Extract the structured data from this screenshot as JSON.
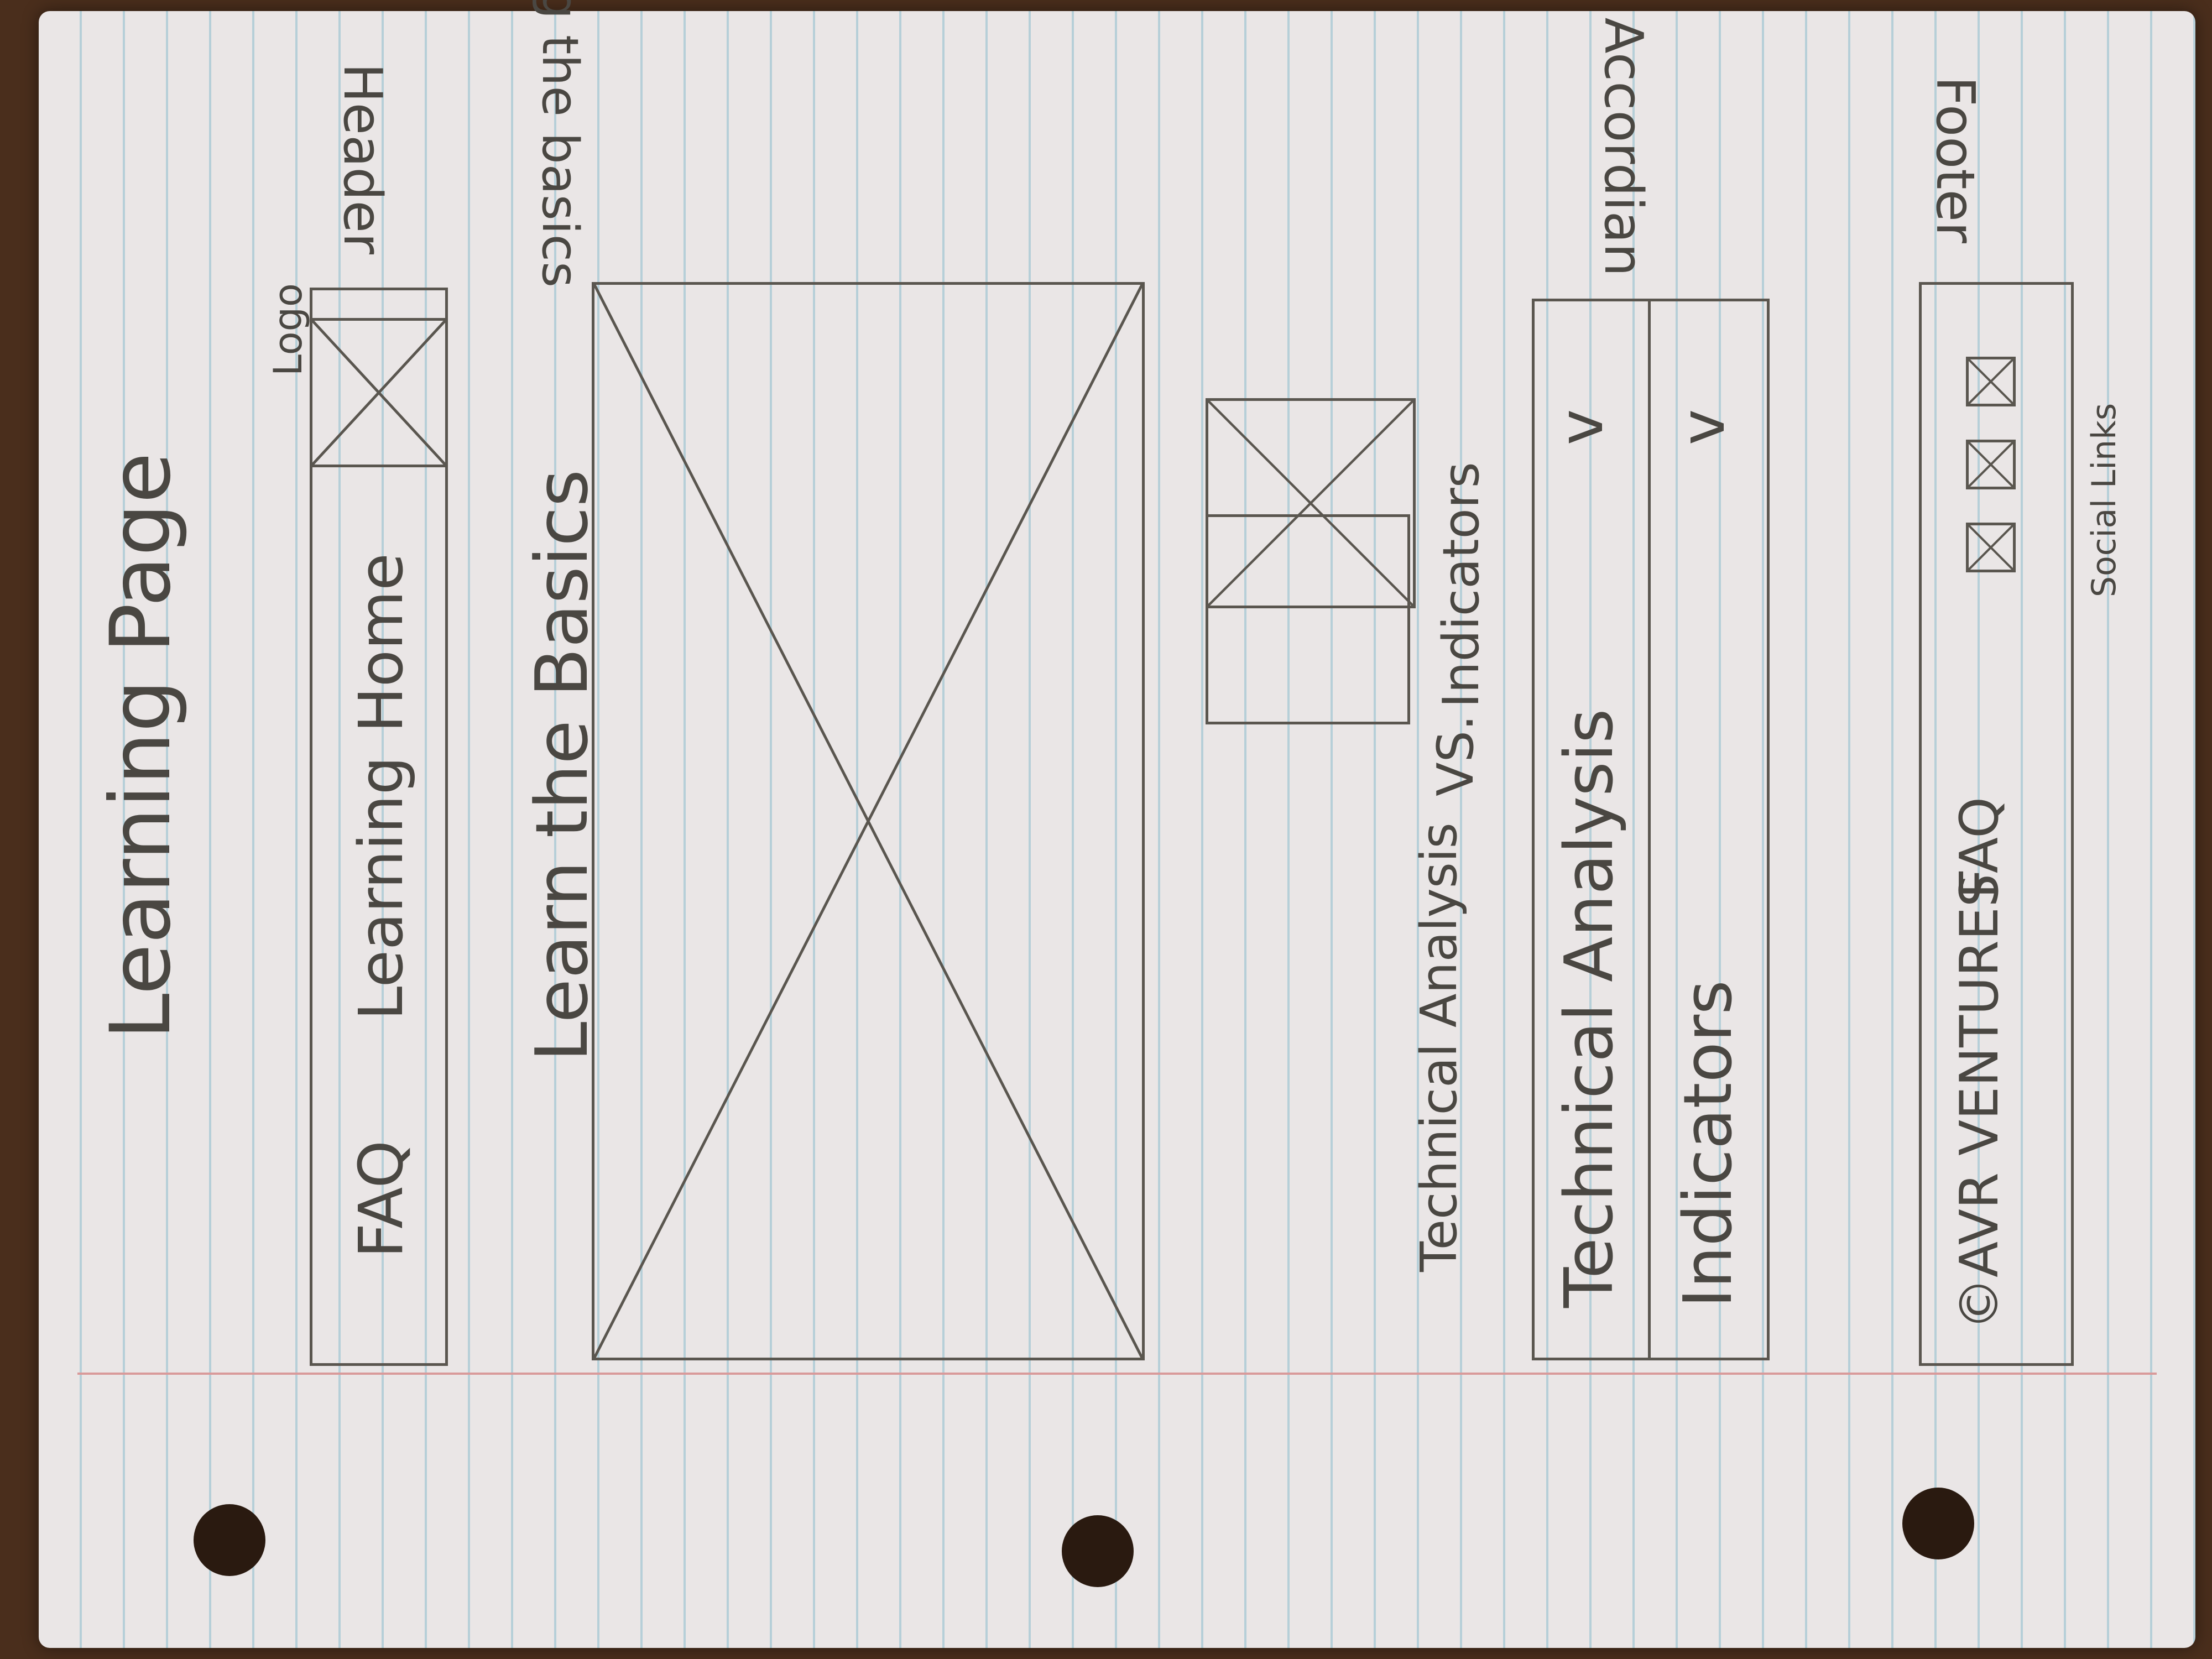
{
  "page_title": "Learning Page",
  "header": {
    "logo_label": "Logo",
    "nav": [
      "Home",
      "Learning",
      "FAQ"
    ],
    "side_label": "Header"
  },
  "hero": {
    "heading": "Learn the Basics",
    "video_note": "Video of me explaining the basics"
  },
  "comparison": {
    "left_label": "Technical Analysis",
    "vs_label": "VS.",
    "right_label": "Indicators"
  },
  "accordion": {
    "side_label": "Accordian",
    "items": [
      {
        "label": "Technical Analysis",
        "chevron": "v"
      },
      {
        "label": "Indicators",
        "chevron": "v"
      }
    ]
  },
  "footer": {
    "copyright": "©AVR VENTURES",
    "faq": "FAQ",
    "social_label": "Social Links",
    "side_label": "Footer"
  },
  "colors": {
    "paper": "#eae6e6",
    "rule_line": "#b6cfd8",
    "margin_line": "#d99a9a",
    "ink": "#4a4742",
    "background": "#4a2e1c"
  }
}
